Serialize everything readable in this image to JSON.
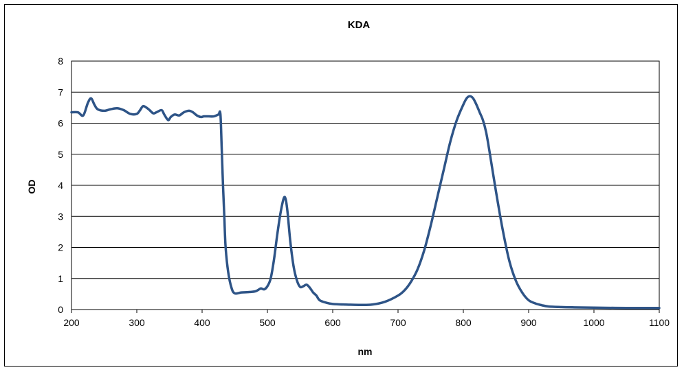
{
  "chart_data": {
    "type": "line",
    "title": "KDA",
    "xlabel": "nm",
    "ylabel": "OD",
    "xlim": [
      200,
      1100
    ],
    "ylim": [
      0,
      8
    ],
    "xticks": [
      200,
      300,
      400,
      500,
      600,
      700,
      800,
      900,
      1000,
      1100
    ],
    "yticks": [
      0,
      1,
      2,
      3,
      4,
      5,
      6,
      7,
      8
    ],
    "grid": "horizontal",
    "legend": "none",
    "series": [
      {
        "color": "#2e5487",
        "x": [
          200,
          210,
          218,
          225,
          230,
          235,
          240,
          250,
          260,
          270,
          280,
          290,
          300,
          305,
          310,
          318,
          325,
          330,
          338,
          342,
          348,
          352,
          358,
          365,
          372,
          380,
          386,
          392,
          398,
          403,
          410,
          418,
          425,
          428,
          430,
          432,
          434,
          436,
          440,
          445,
          450,
          460,
          470,
          480,
          485,
          490,
          495,
          500,
          505,
          510,
          515,
          520,
          525,
          528,
          531,
          535,
          540,
          545,
          550,
          555,
          560,
          565,
          570,
          575,
          580,
          590,
          600,
          620,
          640,
          660,
          680,
          700,
          710,
          720,
          730,
          740,
          750,
          760,
          770,
          780,
          790,
          800,
          805,
          810,
          815,
          820,
          825,
          830,
          835,
          840,
          850,
          860,
          870,
          880,
          890,
          900,
          910,
          920,
          930,
          950,
          970,
          1000,
          1050,
          1100
        ],
        "y": [
          6.35,
          6.35,
          6.25,
          6.65,
          6.8,
          6.6,
          6.45,
          6.4,
          6.45,
          6.48,
          6.42,
          6.3,
          6.3,
          6.42,
          6.55,
          6.45,
          6.32,
          6.35,
          6.42,
          6.28,
          6.1,
          6.2,
          6.28,
          6.25,
          6.35,
          6.4,
          6.35,
          6.25,
          6.2,
          6.22,
          6.22,
          6.22,
          6.28,
          6.3,
          5.2,
          4.0,
          3.0,
          2.0,
          1.2,
          0.7,
          0.52,
          0.55,
          0.56,
          0.58,
          0.62,
          0.68,
          0.65,
          0.75,
          1.0,
          1.6,
          2.4,
          3.1,
          3.58,
          3.55,
          3.1,
          2.2,
          1.4,
          0.95,
          0.73,
          0.75,
          0.8,
          0.7,
          0.55,
          0.45,
          0.3,
          0.22,
          0.18,
          0.16,
          0.15,
          0.16,
          0.25,
          0.45,
          0.62,
          0.9,
          1.3,
          1.9,
          2.7,
          3.6,
          4.5,
          5.4,
          6.1,
          6.6,
          6.8,
          6.87,
          6.8,
          6.6,
          6.35,
          6.1,
          5.7,
          5.1,
          3.8,
          2.6,
          1.6,
          0.95,
          0.55,
          0.3,
          0.2,
          0.14,
          0.1,
          0.08,
          0.07,
          0.06,
          0.05,
          0.05
        ]
      }
    ]
  }
}
